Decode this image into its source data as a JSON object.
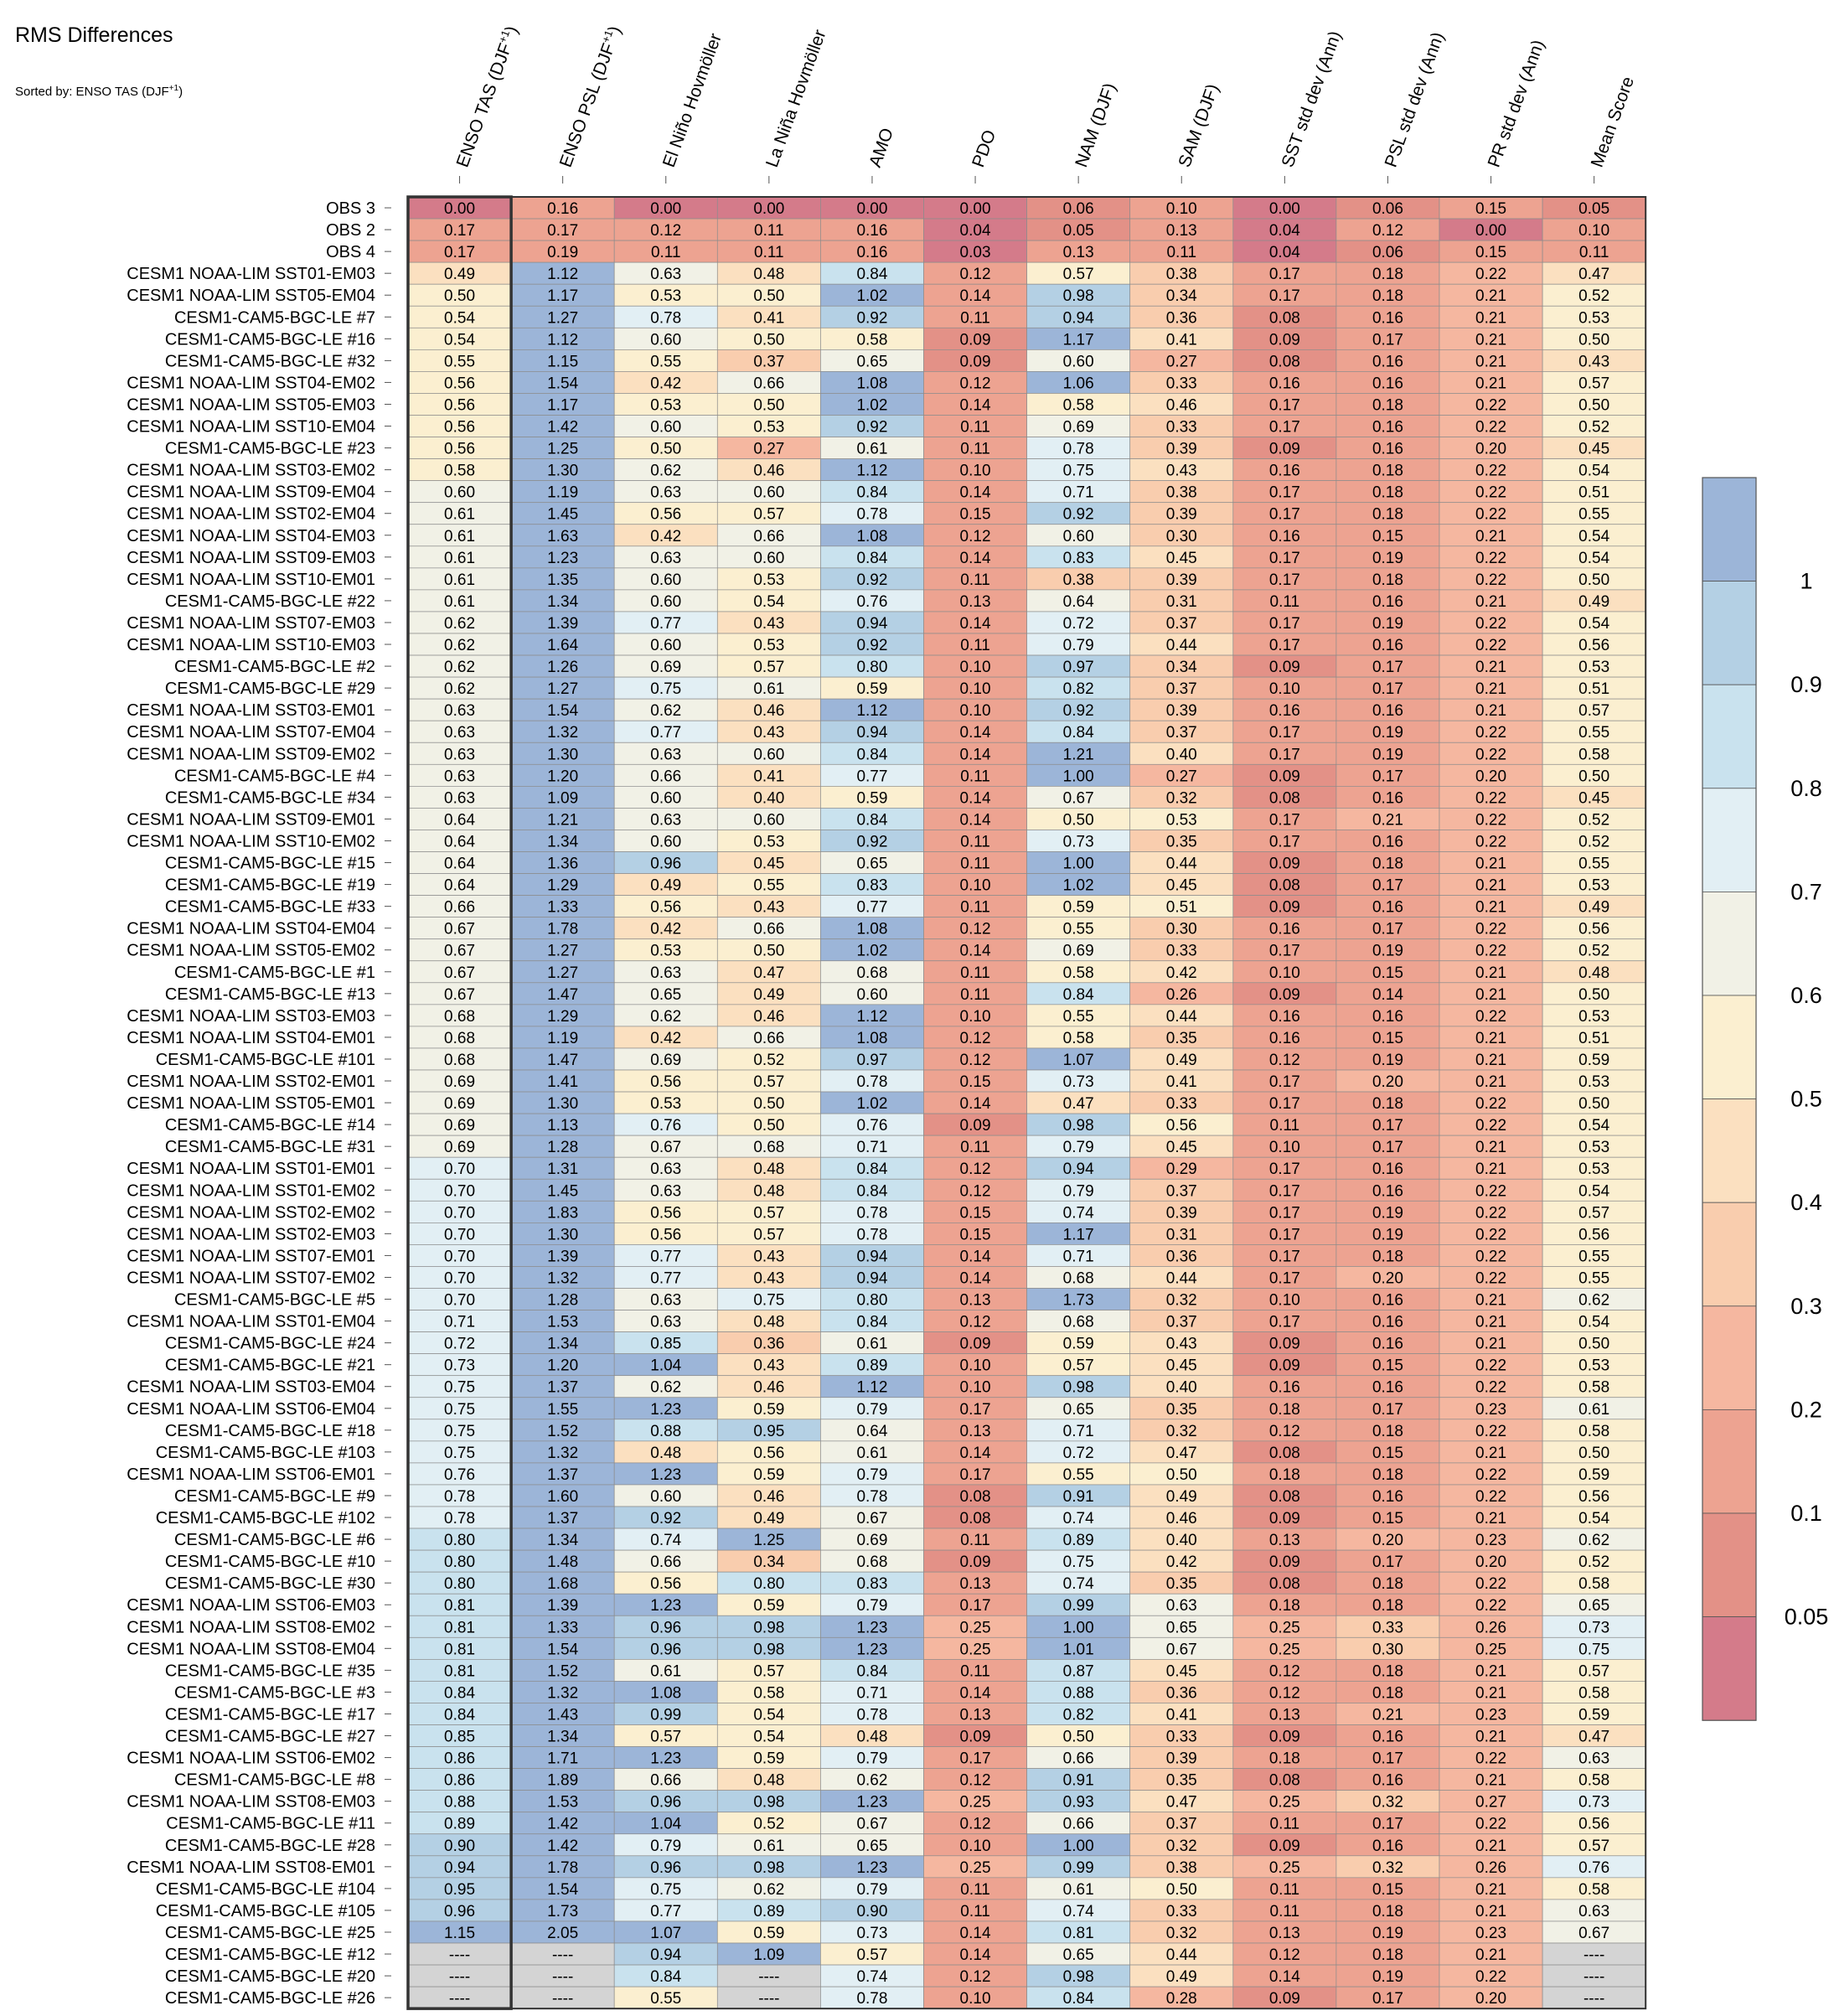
{
  "title": "RMS Differences",
  "subtitle": {
    "text": "Sorted by: ENSO TAS (DJF",
    "sup": "+1",
    "close": ")"
  },
  "chart_data": {
    "type": "heatmap",
    "title": "RMS Differences",
    "sorted_by": "ENSO TAS (DJF+1)",
    "columns": [
      {
        "text": "ENSO TAS (DJF",
        "sup": "+1",
        "close": ")"
      },
      {
        "text": "ENSO PSL (DJF",
        "sup": "+1",
        "close": ")"
      },
      {
        "text": "El Niño Hovmöller"
      },
      {
        "text": "La Niña Hovmöller"
      },
      {
        "text": "AMO"
      },
      {
        "text": "PDO"
      },
      {
        "text": "NAM (DJF)"
      },
      {
        "text": "SAM (DJF)"
      },
      {
        "text": "SST std dev (Ann)"
      },
      {
        "text": "PSL std dev (Ann)"
      },
      {
        "text": "PR std dev (Ann)"
      },
      {
        "text": "Mean Score"
      }
    ],
    "rows": [
      "OBS 3",
      "OBS 2",
      "OBS 4",
      "CESM1 NOAA-LIM SST01-EM03",
      "CESM1 NOAA-LIM SST05-EM04",
      "CESM1-CAM5-BGC-LE #7",
      "CESM1-CAM5-BGC-LE #16",
      "CESM1-CAM5-BGC-LE #32",
      "CESM1 NOAA-LIM SST04-EM02",
      "CESM1 NOAA-LIM SST05-EM03",
      "CESM1 NOAA-LIM SST10-EM04",
      "CESM1-CAM5-BGC-LE #23",
      "CESM1 NOAA-LIM SST03-EM02",
      "CESM1 NOAA-LIM SST09-EM04",
      "CESM1 NOAA-LIM SST02-EM04",
      "CESM1 NOAA-LIM SST04-EM03",
      "CESM1 NOAA-LIM SST09-EM03",
      "CESM1 NOAA-LIM SST10-EM01",
      "CESM1-CAM5-BGC-LE #22",
      "CESM1 NOAA-LIM SST07-EM03",
      "CESM1 NOAA-LIM SST10-EM03",
      "CESM1-CAM5-BGC-LE #2",
      "CESM1-CAM5-BGC-LE #29",
      "CESM1 NOAA-LIM SST03-EM01",
      "CESM1 NOAA-LIM SST07-EM04",
      "CESM1 NOAA-LIM SST09-EM02",
      "CESM1-CAM5-BGC-LE #4",
      "CESM1-CAM5-BGC-LE #34",
      "CESM1 NOAA-LIM SST09-EM01",
      "CESM1 NOAA-LIM SST10-EM02",
      "CESM1-CAM5-BGC-LE #15",
      "CESM1-CAM5-BGC-LE #19",
      "CESM1-CAM5-BGC-LE #33",
      "CESM1 NOAA-LIM SST04-EM04",
      "CESM1 NOAA-LIM SST05-EM02",
      "CESM1-CAM5-BGC-LE #1",
      "CESM1-CAM5-BGC-LE #13",
      "CESM1 NOAA-LIM SST03-EM03",
      "CESM1 NOAA-LIM SST04-EM01",
      "CESM1-CAM5-BGC-LE #101",
      "CESM1 NOAA-LIM SST02-EM01",
      "CESM1 NOAA-LIM SST05-EM01",
      "CESM1-CAM5-BGC-LE #14",
      "CESM1-CAM5-BGC-LE #31",
      "CESM1 NOAA-LIM SST01-EM01",
      "CESM1 NOAA-LIM SST01-EM02",
      "CESM1 NOAA-LIM SST02-EM02",
      "CESM1 NOAA-LIM SST02-EM03",
      "CESM1 NOAA-LIM SST07-EM01",
      "CESM1 NOAA-LIM SST07-EM02",
      "CESM1-CAM5-BGC-LE #5",
      "CESM1 NOAA-LIM SST01-EM04",
      "CESM1-CAM5-BGC-LE #24",
      "CESM1-CAM5-BGC-LE #21",
      "CESM1 NOAA-LIM SST03-EM04",
      "CESM1 NOAA-LIM SST06-EM04",
      "CESM1-CAM5-BGC-LE #18",
      "CESM1-CAM5-BGC-LE #103",
      "CESM1 NOAA-LIM SST06-EM01",
      "CESM1-CAM5-BGC-LE #9",
      "CESM1-CAM5-BGC-LE #102",
      "CESM1-CAM5-BGC-LE #6",
      "CESM1-CAM5-BGC-LE #10",
      "CESM1-CAM5-BGC-LE #30",
      "CESM1 NOAA-LIM SST06-EM03",
      "CESM1 NOAA-LIM SST08-EM02",
      "CESM1 NOAA-LIM SST08-EM04",
      "CESM1-CAM5-BGC-LE #35",
      "CESM1-CAM5-BGC-LE #3",
      "CESM1-CAM5-BGC-LE #17",
      "CESM1-CAM5-BGC-LE #27",
      "CESM1 NOAA-LIM SST06-EM02",
      "CESM1-CAM5-BGC-LE #8",
      "CESM1 NOAA-LIM SST08-EM03",
      "CESM1-CAM5-BGC-LE #11",
      "CESM1-CAM5-BGC-LE #28",
      "CESM1 NOAA-LIM SST08-EM01",
      "CESM1-CAM5-BGC-LE #104",
      "CESM1-CAM5-BGC-LE #105",
      "CESM1-CAM5-BGC-LE #25",
      "CESM1-CAM5-BGC-LE #12",
      "CESM1-CAM5-BGC-LE #20",
      "CESM1-CAM5-BGC-LE #26"
    ],
    "values": [
      [
        0.0,
        0.16,
        0.0,
        0.0,
        0.0,
        0.0,
        0.06,
        0.1,
        0.0,
        0.06,
        0.15,
        0.05
      ],
      [
        0.17,
        0.17,
        0.12,
        0.11,
        0.16,
        0.04,
        0.05,
        0.13,
        0.04,
        0.12,
        0.0,
        0.1
      ],
      [
        0.17,
        0.19,
        0.11,
        0.11,
        0.16,
        0.03,
        0.13,
        0.11,
        0.04,
        0.06,
        0.15,
        0.11
      ],
      [
        0.49,
        1.12,
        0.63,
        0.48,
        0.84,
        0.12,
        0.57,
        0.38,
        0.17,
        0.18,
        0.22,
        0.47
      ],
      [
        0.5,
        1.17,
        0.53,
        0.5,
        1.02,
        0.14,
        0.98,
        0.34,
        0.17,
        0.18,
        0.21,
        0.52
      ],
      [
        0.54,
        1.27,
        0.78,
        0.41,
        0.92,
        0.11,
        0.94,
        0.36,
        0.08,
        0.16,
        0.21,
        0.53
      ],
      [
        0.54,
        1.12,
        0.6,
        0.5,
        0.58,
        0.09,
        1.17,
        0.41,
        0.09,
        0.17,
        0.21,
        0.5
      ],
      [
        0.55,
        1.15,
        0.55,
        0.37,
        0.65,
        0.09,
        0.6,
        0.27,
        0.08,
        0.16,
        0.21,
        0.43
      ],
      [
        0.56,
        1.54,
        0.42,
        0.66,
        1.08,
        0.12,
        1.06,
        0.33,
        0.16,
        0.16,
        0.21,
        0.57
      ],
      [
        0.56,
        1.17,
        0.53,
        0.5,
        1.02,
        0.14,
        0.58,
        0.46,
        0.17,
        0.18,
        0.22,
        0.5
      ],
      [
        0.56,
        1.42,
        0.6,
        0.53,
        0.92,
        0.11,
        0.69,
        0.33,
        0.17,
        0.16,
        0.22,
        0.52
      ],
      [
        0.56,
        1.25,
        0.5,
        0.27,
        0.61,
        0.11,
        0.78,
        0.39,
        0.09,
        0.16,
        0.2,
        0.45
      ],
      [
        0.58,
        1.3,
        0.62,
        0.46,
        1.12,
        0.1,
        0.75,
        0.43,
        0.16,
        0.18,
        0.22,
        0.54
      ],
      [
        0.6,
        1.19,
        0.63,
        0.6,
        0.84,
        0.14,
        0.71,
        0.38,
        0.17,
        0.18,
        0.22,
        0.51
      ],
      [
        0.61,
        1.45,
        0.56,
        0.57,
        0.78,
        0.15,
        0.92,
        0.39,
        0.17,
        0.18,
        0.22,
        0.55
      ],
      [
        0.61,
        1.63,
        0.42,
        0.66,
        1.08,
        0.12,
        0.6,
        0.3,
        0.16,
        0.15,
        0.21,
        0.54
      ],
      [
        0.61,
        1.23,
        0.63,
        0.6,
        0.84,
        0.14,
        0.83,
        0.45,
        0.17,
        0.19,
        0.22,
        0.54
      ],
      [
        0.61,
        1.35,
        0.6,
        0.53,
        0.92,
        0.11,
        0.38,
        0.39,
        0.17,
        0.18,
        0.22,
        0.5
      ],
      [
        0.61,
        1.34,
        0.6,
        0.54,
        0.76,
        0.13,
        0.64,
        0.31,
        0.11,
        0.16,
        0.21,
        0.49
      ],
      [
        0.62,
        1.39,
        0.77,
        0.43,
        0.94,
        0.14,
        0.72,
        0.37,
        0.17,
        0.19,
        0.22,
        0.54
      ],
      [
        0.62,
        1.64,
        0.6,
        0.53,
        0.92,
        0.11,
        0.79,
        0.44,
        0.17,
        0.16,
        0.22,
        0.56
      ],
      [
        0.62,
        1.26,
        0.69,
        0.57,
        0.8,
        0.1,
        0.97,
        0.34,
        0.09,
        0.17,
        0.21,
        0.53
      ],
      [
        0.62,
        1.27,
        0.75,
        0.61,
        0.59,
        0.1,
        0.82,
        0.37,
        0.1,
        0.17,
        0.21,
        0.51
      ],
      [
        0.63,
        1.54,
        0.62,
        0.46,
        1.12,
        0.1,
        0.92,
        0.39,
        0.16,
        0.16,
        0.21,
        0.57
      ],
      [
        0.63,
        1.32,
        0.77,
        0.43,
        0.94,
        0.14,
        0.84,
        0.37,
        0.17,
        0.19,
        0.22,
        0.55
      ],
      [
        0.63,
        1.3,
        0.63,
        0.6,
        0.84,
        0.14,
        1.21,
        0.4,
        0.17,
        0.19,
        0.22,
        0.58
      ],
      [
        0.63,
        1.2,
        0.66,
        0.41,
        0.77,
        0.11,
        1.0,
        0.27,
        0.09,
        0.17,
        0.2,
        0.5
      ],
      [
        0.63,
        1.09,
        0.6,
        0.4,
        0.59,
        0.14,
        0.67,
        0.32,
        0.08,
        0.16,
        0.22,
        0.45
      ],
      [
        0.64,
        1.21,
        0.63,
        0.6,
        0.84,
        0.14,
        0.5,
        0.53,
        0.17,
        0.21,
        0.22,
        0.52
      ],
      [
        0.64,
        1.34,
        0.6,
        0.53,
        0.92,
        0.11,
        0.73,
        0.35,
        0.17,
        0.16,
        0.22,
        0.52
      ],
      [
        0.64,
        1.36,
        0.96,
        0.45,
        0.65,
        0.11,
        1.0,
        0.44,
        0.09,
        0.18,
        0.21,
        0.55
      ],
      [
        0.64,
        1.29,
        0.49,
        0.55,
        0.83,
        0.1,
        1.02,
        0.45,
        0.08,
        0.17,
        0.21,
        0.53
      ],
      [
        0.66,
        1.33,
        0.56,
        0.43,
        0.77,
        0.11,
        0.59,
        0.51,
        0.09,
        0.16,
        0.21,
        0.49
      ],
      [
        0.67,
        1.78,
        0.42,
        0.66,
        1.08,
        0.12,
        0.55,
        0.3,
        0.16,
        0.17,
        0.22,
        0.56
      ],
      [
        0.67,
        1.27,
        0.53,
        0.5,
        1.02,
        0.14,
        0.69,
        0.33,
        0.17,
        0.19,
        0.22,
        0.52
      ],
      [
        0.67,
        1.27,
        0.63,
        0.47,
        0.68,
        0.11,
        0.58,
        0.42,
        0.1,
        0.15,
        0.21,
        0.48
      ],
      [
        0.67,
        1.47,
        0.65,
        0.49,
        0.6,
        0.11,
        0.84,
        0.26,
        0.09,
        0.14,
        0.21,
        0.5
      ],
      [
        0.68,
        1.29,
        0.62,
        0.46,
        1.12,
        0.1,
        0.55,
        0.44,
        0.16,
        0.16,
        0.22,
        0.53
      ],
      [
        0.68,
        1.19,
        0.42,
        0.66,
        1.08,
        0.12,
        0.58,
        0.35,
        0.16,
        0.15,
        0.21,
        0.51
      ],
      [
        0.68,
        1.47,
        0.69,
        0.52,
        0.97,
        0.12,
        1.07,
        0.49,
        0.12,
        0.19,
        0.21,
        0.59
      ],
      [
        0.69,
        1.41,
        0.56,
        0.57,
        0.78,
        0.15,
        0.73,
        0.41,
        0.17,
        0.2,
        0.21,
        0.53
      ],
      [
        0.69,
        1.3,
        0.53,
        0.5,
        1.02,
        0.14,
        0.47,
        0.33,
        0.17,
        0.18,
        0.22,
        0.5
      ],
      [
        0.69,
        1.13,
        0.76,
        0.5,
        0.76,
        0.09,
        0.98,
        0.56,
        0.11,
        0.17,
        0.22,
        0.54
      ],
      [
        0.69,
        1.28,
        0.67,
        0.68,
        0.71,
        0.11,
        0.79,
        0.45,
        0.1,
        0.17,
        0.21,
        0.53
      ],
      [
        0.7,
        1.31,
        0.63,
        0.48,
        0.84,
        0.12,
        0.94,
        0.29,
        0.17,
        0.16,
        0.21,
        0.53
      ],
      [
        0.7,
        1.45,
        0.63,
        0.48,
        0.84,
        0.12,
        0.79,
        0.37,
        0.17,
        0.16,
        0.22,
        0.54
      ],
      [
        0.7,
        1.83,
        0.56,
        0.57,
        0.78,
        0.15,
        0.74,
        0.39,
        0.17,
        0.19,
        0.22,
        0.57
      ],
      [
        0.7,
        1.3,
        0.56,
        0.57,
        0.78,
        0.15,
        1.17,
        0.31,
        0.17,
        0.19,
        0.22,
        0.56
      ],
      [
        0.7,
        1.39,
        0.77,
        0.43,
        0.94,
        0.14,
        0.71,
        0.36,
        0.17,
        0.18,
        0.22,
        0.55
      ],
      [
        0.7,
        1.32,
        0.77,
        0.43,
        0.94,
        0.14,
        0.68,
        0.44,
        0.17,
        0.2,
        0.22,
        0.55
      ],
      [
        0.7,
        1.28,
        0.63,
        0.75,
        0.8,
        0.13,
        1.73,
        0.32,
        0.1,
        0.16,
        0.21,
        0.62
      ],
      [
        0.71,
        1.53,
        0.63,
        0.48,
        0.84,
        0.12,
        0.68,
        0.37,
        0.17,
        0.16,
        0.21,
        0.54
      ],
      [
        0.72,
        1.34,
        0.85,
        0.36,
        0.61,
        0.09,
        0.59,
        0.43,
        0.09,
        0.16,
        0.21,
        0.5
      ],
      [
        0.73,
        1.2,
        1.04,
        0.43,
        0.89,
        0.1,
        0.57,
        0.45,
        0.09,
        0.15,
        0.22,
        0.53
      ],
      [
        0.75,
        1.37,
        0.62,
        0.46,
        1.12,
        0.1,
        0.98,
        0.4,
        0.16,
        0.16,
        0.22,
        0.58
      ],
      [
        0.75,
        1.55,
        1.23,
        0.59,
        0.79,
        0.17,
        0.65,
        0.35,
        0.18,
        0.17,
        0.23,
        0.61
      ],
      [
        0.75,
        1.52,
        0.88,
        0.95,
        0.64,
        0.13,
        0.71,
        0.32,
        0.12,
        0.18,
        0.22,
        0.58
      ],
      [
        0.75,
        1.32,
        0.48,
        0.56,
        0.61,
        0.14,
        0.72,
        0.47,
        0.08,
        0.15,
        0.21,
        0.5
      ],
      [
        0.76,
        1.37,
        1.23,
        0.59,
        0.79,
        0.17,
        0.55,
        0.5,
        0.18,
        0.18,
        0.22,
        0.59
      ],
      [
        0.78,
        1.6,
        0.6,
        0.46,
        0.78,
        0.08,
        0.91,
        0.49,
        0.08,
        0.16,
        0.22,
        0.56
      ],
      [
        0.78,
        1.37,
        0.92,
        0.49,
        0.67,
        0.08,
        0.74,
        0.46,
        0.09,
        0.15,
        0.21,
        0.54
      ],
      [
        0.8,
        1.34,
        0.74,
        1.25,
        0.69,
        0.11,
        0.89,
        0.4,
        0.13,
        0.2,
        0.23,
        0.62
      ],
      [
        0.8,
        1.48,
        0.66,
        0.34,
        0.68,
        0.09,
        0.75,
        0.42,
        0.09,
        0.17,
        0.2,
        0.52
      ],
      [
        0.8,
        1.68,
        0.56,
        0.8,
        0.83,
        0.13,
        0.74,
        0.35,
        0.08,
        0.18,
        0.22,
        0.58
      ],
      [
        0.81,
        1.39,
        1.23,
        0.59,
        0.79,
        0.17,
        0.99,
        0.63,
        0.18,
        0.18,
        0.22,
        0.65
      ],
      [
        0.81,
        1.33,
        0.96,
        0.98,
        1.23,
        0.25,
        1.0,
        0.65,
        0.25,
        0.33,
        0.26,
        0.73
      ],
      [
        0.81,
        1.54,
        0.96,
        0.98,
        1.23,
        0.25,
        1.01,
        0.67,
        0.25,
        0.3,
        0.25,
        0.75
      ],
      [
        0.81,
        1.52,
        0.61,
        0.57,
        0.84,
        0.11,
        0.87,
        0.45,
        0.12,
        0.18,
        0.21,
        0.57
      ],
      [
        0.84,
        1.32,
        1.08,
        0.58,
        0.71,
        0.14,
        0.88,
        0.36,
        0.12,
        0.18,
        0.21,
        0.58
      ],
      [
        0.84,
        1.43,
        0.99,
        0.54,
        0.78,
        0.13,
        0.82,
        0.41,
        0.13,
        0.21,
        0.23,
        0.59
      ],
      [
        0.85,
        1.34,
        0.57,
        0.54,
        0.48,
        0.09,
        0.5,
        0.33,
        0.09,
        0.16,
        0.21,
        0.47
      ],
      [
        0.86,
        1.71,
        1.23,
        0.59,
        0.79,
        0.17,
        0.66,
        0.39,
        0.18,
        0.17,
        0.22,
        0.63
      ],
      [
        0.86,
        1.89,
        0.66,
        0.48,
        0.62,
        0.12,
        0.91,
        0.35,
        0.08,
        0.16,
        0.21,
        0.58
      ],
      [
        0.88,
        1.53,
        0.96,
        0.98,
        1.23,
        0.25,
        0.93,
        0.47,
        0.25,
        0.32,
        0.27,
        0.73
      ],
      [
        0.89,
        1.42,
        1.04,
        0.52,
        0.67,
        0.12,
        0.66,
        0.37,
        0.11,
        0.17,
        0.22,
        0.56
      ],
      [
        0.9,
        1.42,
        0.79,
        0.61,
        0.65,
        0.1,
        1.0,
        0.32,
        0.09,
        0.16,
        0.21,
        0.57
      ],
      [
        0.94,
        1.78,
        0.96,
        0.98,
        1.23,
        0.25,
        0.99,
        0.38,
        0.25,
        0.32,
        0.26,
        0.76
      ],
      [
        0.95,
        1.54,
        0.75,
        0.62,
        0.79,
        0.11,
        0.61,
        0.5,
        0.11,
        0.15,
        0.21,
        0.58
      ],
      [
        0.96,
        1.73,
        0.77,
        0.89,
        0.9,
        0.11,
        0.74,
        0.33,
        0.11,
        0.18,
        0.21,
        0.63
      ],
      [
        1.15,
        2.05,
        1.07,
        0.59,
        0.73,
        0.14,
        0.81,
        0.32,
        0.13,
        0.19,
        0.23,
        0.67
      ],
      [
        null,
        null,
        0.94,
        1.09,
        0.57,
        0.14,
        0.65,
        0.44,
        0.12,
        0.18,
        0.21,
        null
      ],
      [
        null,
        null,
        0.84,
        null,
        0.74,
        0.12,
        0.98,
        0.49,
        0.14,
        0.19,
        0.22,
        null
      ],
      [
        null,
        null,
        0.55,
        null,
        0.78,
        0.1,
        0.84,
        0.28,
        0.09,
        0.17,
        0.2,
        null
      ]
    ],
    "missing_label": "----",
    "colorbar": {
      "levels": [
        0.05,
        0.1,
        0.2,
        0.3,
        0.4,
        0.5,
        0.6,
        0.7,
        0.8,
        0.9,
        1
      ],
      "tick_labels": [
        "0.05",
        "0.1",
        "0.2",
        "0.3",
        "0.4",
        "0.5",
        "0.6",
        "0.7",
        "0.8",
        "0.9",
        "1"
      ],
      "colors": [
        "#d47b8a",
        "#e39187",
        "#eda391",
        "#f5b7a0",
        "#f9cdae",
        "#fbe0c0",
        "#fbefd0",
        "#f1f1e6",
        "#e2eff4",
        "#c9e2ee",
        "#b4d0e4",
        "#9cb5d8"
      ],
      "missing_color": "#d4d4d4"
    }
  }
}
